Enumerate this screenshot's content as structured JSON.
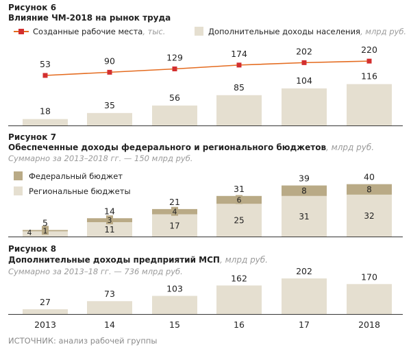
{
  "chart_data": [
    {
      "id": "fig6",
      "type": "bar",
      "figure_label": "Рисунок 6",
      "title": "Влияние ЧМ-2018 на рынок труда",
      "categories": [
        "2013",
        "14",
        "15",
        "16",
        "17",
        "2018"
      ],
      "series": [
        {
          "name": "Созданные рабочие места",
          "unit": ", тыс.",
          "kind": "line",
          "color": "#e46b1f",
          "marker_color": "#d32f2f",
          "values": [
            53,
            90,
            129,
            174,
            202,
            220
          ]
        },
        {
          "name": "Дополнительные доходы населения",
          "unit": ", млрд руб.",
          "kind": "bar",
          "color": "#e5dfd0",
          "values": [
            18,
            35,
            56,
            85,
            104,
            116
          ]
        }
      ]
    },
    {
      "id": "fig7",
      "type": "bar",
      "stacked": true,
      "figure_label": "Рисунок 7",
      "title": "Обеспеченные доходы федерального и регионального бюджетов",
      "title_unit": ", млрд руб.",
      "subtitle": "Суммарно за 2013–2018 гг. — 150 млрд руб.",
      "categories": [
        "2013",
        "14",
        "15",
        "16",
        "17",
        "2018"
      ],
      "totals": [
        5,
        14,
        21,
        31,
        39,
        40
      ],
      "series": [
        {
          "name": "Региональные бюджеты",
          "color": "#e5dfd0",
          "values": [
            4,
            11,
            17,
            25,
            31,
            32
          ]
        },
        {
          "name": "Федеральный бюджет",
          "color": "#b9aa86",
          "values": [
            1,
            3,
            4,
            6,
            8,
            8
          ]
        }
      ]
    },
    {
      "id": "fig8",
      "type": "bar",
      "figure_label": "Рисунок 8",
      "title": "Дополнительные доходы предприятий МСП",
      "title_unit": ", млрд руб.",
      "subtitle": "Суммарно за 2013–18 гг. — 736 млрд руб.",
      "categories": [
        "2013",
        "14",
        "15",
        "16",
        "17",
        "2018"
      ],
      "series": [
        {
          "name": "",
          "color": "#e5dfd0",
          "values": [
            27,
            73,
            103,
            162,
            202,
            170
          ]
        }
      ]
    }
  ],
  "x_axis_labels": [
    "2013",
    "14",
    "15",
    "16",
    "17",
    "2018"
  ],
  "source": "ИСТОЧНИК: анализ рабочей группы"
}
